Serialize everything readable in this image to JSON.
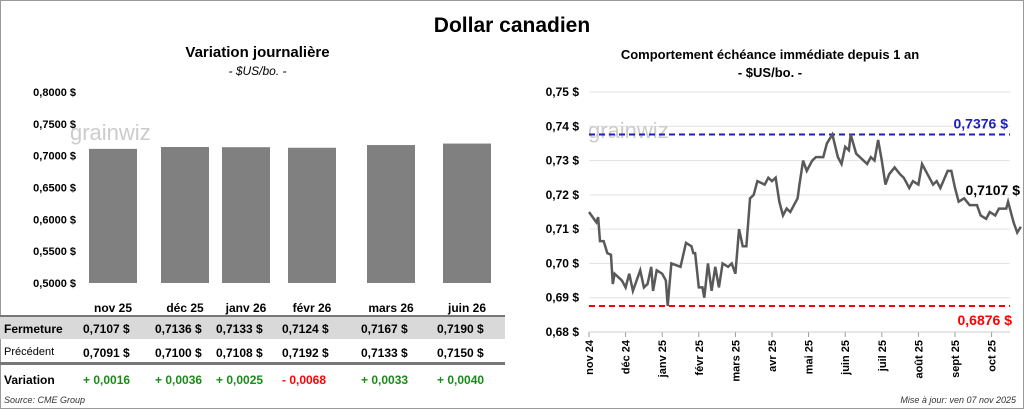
{
  "title": "Dollar canadien",
  "left": {
    "title": "Variation journalière",
    "subtitle": "- $US/bo. -"
  },
  "right": {
    "title": "Comportement échéance immédiate depuis 1 an",
    "subtitle": "- $US/bo. -"
  },
  "watermark": "grainwiz",
  "table": {
    "row_labels": [
      "Fermeture",
      "Précédent",
      "Variation"
    ],
    "fermeture": [
      "0,7107  $",
      "0,7136  $",
      "0,7133  $",
      "0,7124  $",
      "0,7167  $",
      "0,7190  $"
    ],
    "precedent": [
      "0,7091  $",
      "0,7100  $",
      "0,7108  $",
      "0,7192  $",
      "0,7133  $",
      "0,7150  $"
    ],
    "variation": [
      "+ 0,0016",
      "+ 0,0036",
      "+ 0,0025",
      "- 0,0068",
      "+ 0,0033",
      "+ 0,0040"
    ],
    "variation_colors": [
      "#1a8a1a",
      "#1a8a1a",
      "#1a8a1a",
      "#ff0000",
      "#1a8a1a",
      "#1a8a1a"
    ]
  },
  "source": "Source: CME Group",
  "update": "Mise à jour: ven 07 nov 2025",
  "chart_data": [
    {
      "type": "bar",
      "categories": [
        "nov 25",
        "déc 25",
        "janv 26",
        "févr 26",
        "mars 26",
        "juin 26"
      ],
      "values": [
        0.7107,
        0.7136,
        0.7133,
        0.7124,
        0.7167,
        0.719
      ],
      "ylim": [
        0.5,
        0.8
      ],
      "yticks": [
        0.5,
        0.55,
        0.6,
        0.65,
        0.7,
        0.75,
        0.8
      ],
      "ytick_labels": [
        "0,5000 $",
        "0,5500 $",
        "0,6000 $",
        "0,6500 $",
        "0,7000 $",
        "0,7500 $",
        "0,8000 $"
      ],
      "bar_color": "#808080"
    },
    {
      "type": "line",
      "xlabels": [
        "nov 24",
        "déc 24",
        "janv 25",
        "févr 25",
        "mars 25",
        "avr 25",
        "mai 25",
        "juin 25",
        "juil 25",
        "août 25",
        "sept 25",
        "oct 25"
      ],
      "ylim": [
        0.68,
        0.75
      ],
      "yticks": [
        0.68,
        0.69,
        0.7,
        0.71,
        0.72,
        0.73,
        0.74,
        0.75
      ],
      "ytick_labels": [
        "0,68 $",
        "0,69 $",
        "0,70 $",
        "0,71 $",
        "0,72 $",
        "0,73 $",
        "0,74 $",
        "0,75 $"
      ],
      "x": [
        0,
        0.2,
        0.25,
        0.3,
        0.4,
        0.5,
        0.6,
        0.65,
        0.7,
        0.9,
        1.0,
        1.1,
        1.2,
        1.4,
        1.5,
        1.6,
        1.7,
        1.75,
        1.85,
        2.0,
        2.1,
        2.15,
        2.25,
        2.5,
        2.65,
        2.8,
        2.85,
        2.9,
        3.0,
        3.1,
        3.15,
        3.25,
        3.35,
        3.45,
        3.55,
        3.65,
        3.8,
        3.9,
        4.0,
        4.1,
        4.2,
        4.3,
        4.4,
        4.5,
        4.6,
        4.8,
        4.9,
        5.0,
        5.1,
        5.2,
        5.3,
        5.4,
        5.5,
        5.7,
        5.75,
        5.85,
        5.95,
        6.1,
        6.2,
        6.4,
        6.5,
        6.65,
        6.8,
        6.9,
        7.0,
        7.1,
        7.15,
        7.3,
        7.5,
        7.6,
        7.7,
        7.8,
        7.9,
        8.0,
        8.1,
        8.2,
        8.35,
        8.5,
        8.6,
        8.75,
        8.85,
        9.0,
        9.1,
        9.3,
        9.4,
        9.5,
        9.6,
        9.8,
        9.9,
        10.0,
        10.1,
        10.25,
        10.4,
        10.6,
        10.7,
        10.85,
        10.95,
        11.1,
        11.2,
        11.4,
        11.45,
        11.6,
        11.7,
        11.8
      ],
      "y": [
        0.715,
        0.712,
        0.7135,
        0.7065,
        0.7065,
        0.703,
        0.7025,
        0.694,
        0.697,
        0.695,
        0.693,
        0.697,
        0.692,
        0.698,
        0.693,
        0.694,
        0.699,
        0.692,
        0.698,
        0.697,
        0.695,
        0.6876,
        0.7,
        0.699,
        0.706,
        0.705,
        0.703,
        0.703,
        0.693,
        0.693,
        0.69,
        0.7,
        0.692,
        0.699,
        0.693,
        0.7,
        0.699,
        0.7,
        0.697,
        0.71,
        0.705,
        0.705,
        0.719,
        0.72,
        0.724,
        0.723,
        0.725,
        0.724,
        0.725,
        0.718,
        0.714,
        0.716,
        0.715,
        0.719,
        0.723,
        0.73,
        0.727,
        0.73,
        0.731,
        0.731,
        0.735,
        0.7376,
        0.731,
        0.729,
        0.734,
        0.733,
        0.7376,
        0.732,
        0.73,
        0.729,
        0.731,
        0.73,
        0.736,
        0.73,
        0.723,
        0.726,
        0.728,
        0.726,
        0.725,
        0.722,
        0.724,
        0.723,
        0.729,
        0.725,
        0.723,
        0.724,
        0.722,
        0.727,
        0.727,
        0.722,
        0.718,
        0.719,
        0.717,
        0.717,
        0.714,
        0.713,
        0.715,
        0.714,
        0.716,
        0.716,
        0.718,
        0.712,
        0.709,
        0.7107
      ],
      "high": 0.7376,
      "low": 0.6876,
      "last": 0.7107,
      "high_label": "0,7376 $",
      "low_label": "0,6876 $",
      "last_label": "0,7107 $",
      "line_color": "#595959",
      "high_color": "#1f1fbf",
      "low_color": "#ff0000"
    }
  ]
}
